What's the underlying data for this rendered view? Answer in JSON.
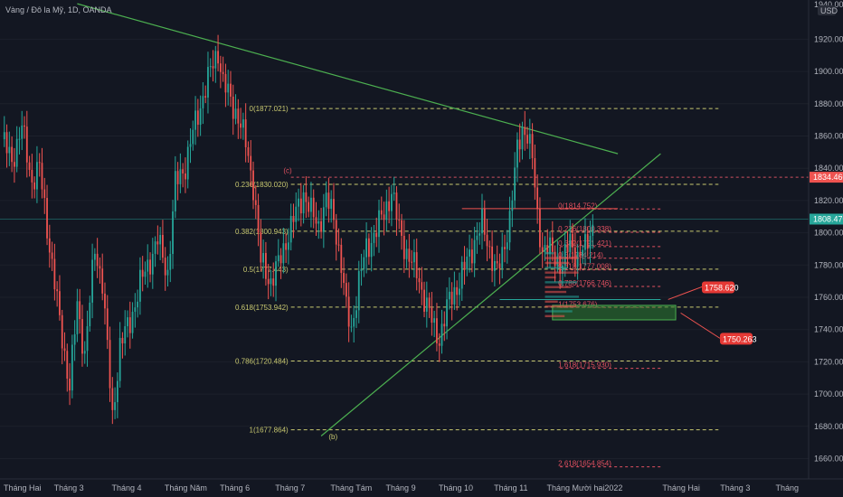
{
  "header": {
    "symbol_title": "Vàng / Đô la Mỹ, 1D, OANDA",
    "currency": "USD",
    "top_partial_label": "1940.00"
  },
  "colors": {
    "background": "#131722",
    "up": "#26a69a",
    "down": "#ef5350",
    "fib_main": "#c8c870",
    "fib_small": "#e05060",
    "trendline": "#4caf50",
    "resistance_dash": "#d05060",
    "current_price": "#26a69a",
    "zone": "#2e7d32"
  },
  "chart_data": {
    "type": "candlestick",
    "title": "Vàng / Đô la Mỹ, 1D, OANDA",
    "ylim": [
      1650,
      1945
    ],
    "y_ticks": [
      1660,
      1680,
      1700,
      1720,
      1740,
      1760,
      1780,
      1800,
      1820,
      1840,
      1860,
      1880,
      1900,
      1920
    ],
    "x_ticks": [
      {
        "label": "Tháng Hai",
        "i": 0
      },
      {
        "label": "Tháng 3",
        "i": 20
      },
      {
        "label": "Tháng 4",
        "i": 43
      },
      {
        "label": "Tháng Năm",
        "i": 64
      },
      {
        "label": "Tháng 6",
        "i": 86
      },
      {
        "label": "Tháng 7",
        "i": 108
      },
      {
        "label": "Tháng Tám",
        "i": 130
      },
      {
        "label": "Tháng 9",
        "i": 152
      },
      {
        "label": "Tháng 10",
        "i": 173
      },
      {
        "label": "Tháng 11",
        "i": 195
      },
      {
        "label": "Tháng Mười hai",
        "i": 216
      },
      {
        "label": "2022",
        "i": 239
      },
      {
        "label": "Tháng Hai",
        "i": 262
      },
      {
        "label": "Tháng 3",
        "i": 285
      },
      {
        "label": "Tháng",
        "i": 307
      }
    ],
    "anchors": [
      [
        0,
        1858
      ],
      [
        4,
        1845
      ],
      [
        8,
        1865
      ],
      [
        12,
        1832
      ],
      [
        15,
        1840
      ],
      [
        20,
        1780
      ],
      [
        23,
        1745
      ],
      [
        27,
        1705
      ],
      [
        30,
        1755
      ],
      [
        33,
        1725
      ],
      [
        37,
        1790
      ],
      [
        40,
        1770
      ],
      [
        44,
        1685
      ],
      [
        47,
        1730
      ],
      [
        51,
        1745
      ],
      [
        55,
        1768
      ],
      [
        58,
        1780
      ],
      [
        62,
        1795
      ],
      [
        66,
        1775
      ],
      [
        69,
        1830
      ],
      [
        73,
        1842
      ],
      [
        76,
        1862
      ],
      [
        80,
        1885
      ],
      [
        83,
        1900
      ],
      [
        86,
        1913
      ],
      [
        88,
        1893
      ],
      [
        91,
        1882
      ],
      [
        94,
        1872
      ],
      [
        97,
        1855
      ],
      [
        100,
        1830
      ],
      [
        103,
        1782
      ],
      [
        107,
        1770
      ],
      [
        110,
        1780
      ],
      [
        114,
        1800
      ],
      [
        117,
        1812
      ],
      [
        120,
        1825
      ],
      [
        123,
        1812
      ],
      [
        126,
        1805
      ],
      [
        129,
        1820
      ],
      [
        132,
        1810
      ],
      [
        135,
        1780
      ],
      [
        137,
        1752
      ],
      [
        139,
        1740
      ],
      [
        142,
        1770
      ],
      [
        145,
        1790
      ],
      [
        149,
        1802
      ],
      [
        152,
        1812
      ],
      [
        155,
        1826
      ],
      [
        158,
        1802
      ],
      [
        161,
        1788
      ],
      [
        165,
        1775
      ],
      [
        169,
        1755
      ],
      [
        172,
        1740
      ],
      [
        174,
        1735
      ],
      [
        178,
        1758
      ],
      [
        182,
        1770
      ],
      [
        185,
        1782
      ],
      [
        188,
        1795
      ],
      [
        191,
        1805
      ],
      [
        194,
        1790
      ],
      [
        197,
        1775
      ],
      [
        199,
        1785
      ],
      [
        202,
        1810
      ],
      [
        205,
        1850
      ],
      [
        207,
        1865
      ],
      [
        209,
        1862
      ],
      [
        211,
        1845
      ],
      [
        213,
        1810
      ],
      [
        215,
        1790
      ],
      [
        217,
        1790
      ],
      [
        220,
        1785
      ],
      [
        223,
        1780
      ],
      [
        226,
        1795
      ],
      [
        229,
        1785
      ],
      [
        232,
        1790
      ],
      [
        235,
        1805
      ]
    ],
    "fib_main_levels": [
      {
        "label": "0(1877.021)",
        "value": 1877.021
      },
      {
        "label": "0.236(1830.020)",
        "value": 1830.02
      },
      {
        "label": "0.382(1800.943)",
        "value": 1800.943
      },
      {
        "label": "0.5(1777.443)",
        "value": 1777.443
      },
      {
        "label": "0.618(1753.942)",
        "value": 1753.942
      },
      {
        "label": "0.786(1720.484)",
        "value": 1720.484
      },
      {
        "label": "1(1677.864)",
        "value": 1677.864
      }
    ],
    "fib_small_levels": [
      {
        "label": "0(1814.752)",
        "value": 1814.752
      },
      {
        "label": "0.236(1800.338)",
        "value": 1800.338
      },
      {
        "label": "0.382(1791.421)",
        "value": 1791.421
      },
      {
        "label": "0.5(1784.214)",
        "value": 1784.214
      },
      {
        "label": "0.618(1777.008)",
        "value": 1777.008
      },
      {
        "label": "0.786(1766.746)",
        "value": 1766.746
      },
      {
        "label": "1(1753.676)",
        "value": 1753.676
      },
      {
        "label": "1.618(1715.930)",
        "value": 1715.93
      },
      {
        "label": "2.618(1654.854)",
        "value": 1654.854
      }
    ],
    "wave_labels": [
      {
        "label": "(c)",
        "i": 112,
        "value": 1837
      },
      {
        "label": "(b)",
        "i": 130,
        "value": 1672
      }
    ],
    "price_tags": [
      {
        "label": "1834.460",
        "value": 1834.46,
        "color": "#ef5350"
      },
      {
        "label": "1808.470",
        "value": 1808.47,
        "color": "#26a69a"
      }
    ],
    "callouts": [
      {
        "label": "1758.620",
        "value": 1758.62,
        "i": 265
      },
      {
        "label": "1750.263",
        "value": 1750.263,
        "i": 270
      }
    ],
    "resistance_level": 1834.46,
    "current_price": 1808.47,
    "support_zone": [
      1746,
      1755
    ],
    "descending_trendline": [
      [
        30,
        1942
      ],
      [
        245,
        1849
      ]
    ],
    "ascending_trendline": [
      [
        127,
        1674
      ],
      [
        262,
        1849
      ]
    ],
    "short_levels": [
      1815,
      1758.62
    ]
  }
}
